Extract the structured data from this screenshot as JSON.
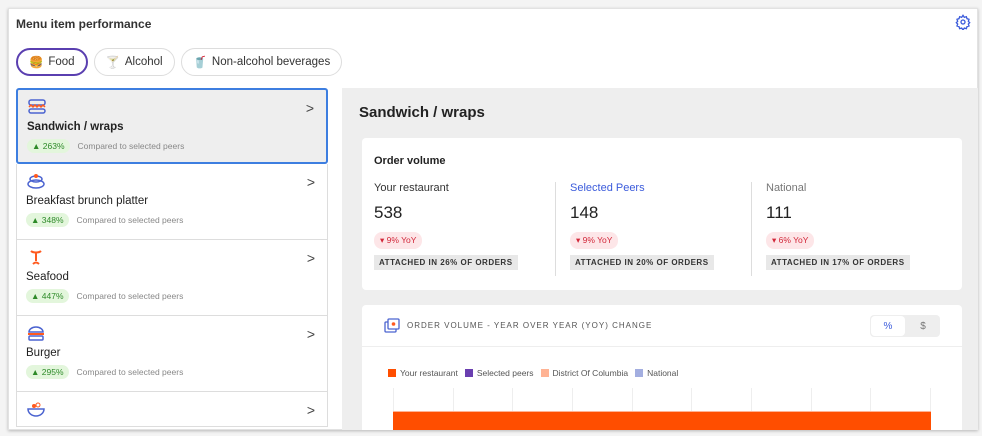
{
  "header": {
    "title": "Menu item performance"
  },
  "tabs": [
    {
      "label": "Food",
      "icon": "burger-icon"
    },
    {
      "label": "Alcohol",
      "icon": "cocktail-icon"
    },
    {
      "label": "Non-alcohol beverages",
      "icon": "soda-cup-icon"
    }
  ],
  "items": [
    {
      "name": "Sandwich / wraps",
      "change": "263%",
      "compare": "Compared to selected peers",
      "icon": "sandwich-icon"
    },
    {
      "name": "Breakfast brunch platter",
      "change": "348%",
      "compare": "Compared to selected peers",
      "icon": "pancake-icon"
    },
    {
      "name": "Seafood",
      "change": "447%",
      "compare": "Compared to selected peers",
      "icon": "shrimp-icon"
    },
    {
      "name": "Burger",
      "change": "295%",
      "compare": "Compared to selected peers",
      "icon": "burger-icon"
    },
    {
      "name": "",
      "icon": "salad-bowl-icon"
    }
  ],
  "detail": {
    "title": "Sandwich / wraps",
    "order_volume": {
      "heading": "Order volume",
      "columns": [
        {
          "label": "Your restaurant",
          "value": "538",
          "yoy": "9% YoY",
          "attached": "ATTACHED IN 26% OF ORDERS"
        },
        {
          "label": "Selected Peers",
          "value": "148",
          "yoy": "9% YoY",
          "attached": "ATTACHED IN 20% OF ORDERS"
        },
        {
          "label": "National",
          "value": "111",
          "yoy": "6% YoY",
          "attached": "ATTACHED IN 17% OF ORDERS"
        }
      ]
    },
    "chart": {
      "title": "ORDER VOLUME - YEAR OVER YEAR (YOY) CHANGE",
      "toggle": [
        "%",
        "$"
      ],
      "selected": "%",
      "legend": [
        {
          "name": "Your restaurant",
          "color": "#ff4e00"
        },
        {
          "name": "Selected peers",
          "color": "#6a3fb0"
        },
        {
          "name": "District Of Columbia",
          "color": "#ffb394"
        },
        {
          "name": "National",
          "color": "#a3aee0"
        }
      ]
    }
  },
  "colors": {
    "accent": "#3b5bdb",
    "active_tab": "#5a3fb0",
    "up": "#2d8a28",
    "down": "#d2283a"
  }
}
